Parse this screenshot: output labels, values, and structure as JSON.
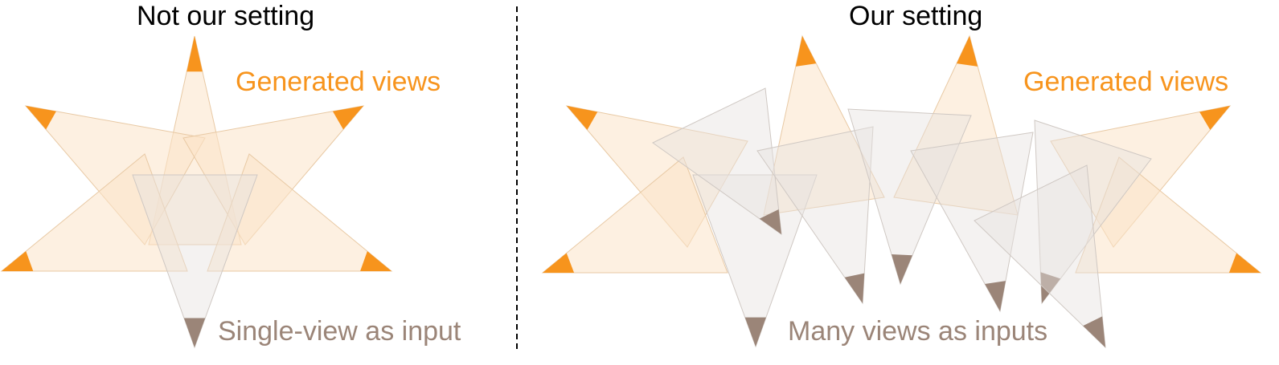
{
  "left_panel": {
    "title": "Not our setting",
    "generated_label": "Generated views",
    "input_label": "Single-view as input"
  },
  "right_panel": {
    "title": "Our setting",
    "generated_label": "Generated views",
    "input_label": "Many views as inputs"
  },
  "colors": {
    "title_text": "#000000",
    "generated": "#f7941d",
    "generated_fill": "#fbe3c8",
    "input": "#9b8578",
    "input_fill": "#e6e2df",
    "divider": "#000000"
  }
}
